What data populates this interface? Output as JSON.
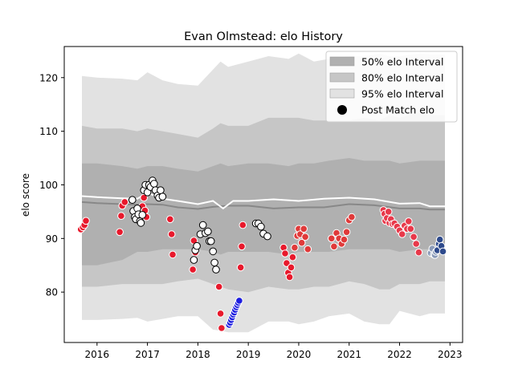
{
  "chart_data": {
    "type": "scatter",
    "title": "Evan Olmstead: elo History",
    "xlabel": "",
    "ylabel": "elo score",
    "xlim": [
      2015.35,
      2023.25
    ],
    "ylim": [
      70.6,
      125.8
    ],
    "x_ticks": [
      2016,
      2017,
      2018,
      2019,
      2020,
      2021,
      2022,
      2023
    ],
    "y_ticks": [
      80,
      90,
      100,
      110,
      120
    ],
    "legend_position": "top-right",
    "legend": [
      {
        "label": "50% elo Interval",
        "kind": "patch",
        "color": "#b0b0b0"
      },
      {
        "label": "80% elo Interval",
        "kind": "patch",
        "color": "#c6c6c6"
      },
      {
        "label": "95% elo Interval",
        "kind": "patch",
        "color": "#e2e2e2"
      },
      {
        "label": "Post Match elo",
        "kind": "marker",
        "color": "#000000"
      }
    ],
    "band_x": [
      2015.7,
      2016.0,
      2016.5,
      2016.8,
      2017.0,
      2017.3,
      2017.6,
      2018.0,
      2018.3,
      2018.45,
      2018.6,
      2019.0,
      2019.4,
      2019.8,
      2020.0,
      2020.3,
      2020.6,
      2021.0,
      2021.3,
      2021.6,
      2021.8,
      2022.0,
      2022.4,
      2022.6,
      2022.75,
      2022.9
    ],
    "interval_95": {
      "upper": [
        120.3,
        120.0,
        119.8,
        119.5,
        121.0,
        119.5,
        118.8,
        118.5,
        121.5,
        123.0,
        122.0,
        123.0,
        124.0,
        123.5,
        124.5,
        123.0,
        123.5,
        124.0,
        124.0,
        124.5,
        124.0,
        124.0,
        124.5,
        124.3,
        124.3,
        124.3
      ],
      "lower": [
        74.8,
        74.8,
        75.0,
        75.2,
        74.5,
        75.0,
        75.5,
        75.5,
        73.0,
        72.8,
        72.5,
        72.5,
        74.5,
        74.5,
        74.0,
        74.5,
        75.5,
        76.0,
        74.5,
        74.0,
        74.0,
        76.5,
        75.5,
        76.0,
        76.0,
        76.0
      ]
    },
    "interval_80": {
      "upper": [
        111.0,
        110.5,
        110.5,
        110.0,
        110.5,
        110.0,
        109.5,
        108.8,
        110.5,
        111.5,
        111.0,
        111.0,
        112.5,
        112.5,
        112.5,
        112.0,
        112.0,
        112.0,
        112.5,
        112.0,
        113.0,
        112.5,
        113.5,
        113.0,
        113.0,
        113.0
      ],
      "lower": [
        81.0,
        81.0,
        81.5,
        81.5,
        81.5,
        81.5,
        82.0,
        82.5,
        81.5,
        81.0,
        80.5,
        80.0,
        81.0,
        80.5,
        80.5,
        81.0,
        81.0,
        82.0,
        81.5,
        80.5,
        80.5,
        81.5,
        81.5,
        82.0,
        82.0,
        82.0
      ]
    },
    "interval_50": {
      "upper": [
        104.0,
        104.0,
        103.5,
        103.0,
        103.5,
        103.5,
        103.0,
        102.5,
        103.5,
        104.0,
        103.5,
        104.0,
        104.0,
        103.5,
        104.0,
        104.0,
        104.5,
        105.0,
        104.5,
        104.5,
        104.5,
        104.0,
        104.5,
        104.5,
        104.5,
        104.5
      ],
      "lower": [
        85.0,
        85.0,
        86.0,
        87.5,
        87.5,
        88.0,
        88.0,
        88.0,
        87.5,
        87.0,
        87.5,
        87.5,
        87.5,
        87.0,
        87.5,
        87.5,
        87.5,
        88.0,
        88.0,
        88.0,
        88.0,
        87.5,
        88.0,
        88.0,
        88.0,
        88.0
      ]
    },
    "median_line": {
      "color": "#888888",
      "x": [
        2015.7,
        2016.0,
        2016.5,
        2016.8,
        2017.0,
        2017.3,
        2017.6,
        2018.0,
        2018.3,
        2018.6,
        2019.0,
        2019.5,
        2020.0,
        2020.5,
        2021.0,
        2021.5,
        2022.0,
        2022.4,
        2022.6,
        2022.9
      ],
      "y": [
        96.8,
        96.6,
        96.4,
        96.3,
        96.4,
        96.3,
        95.8,
        95.5,
        95.9,
        96.1,
        96.1,
        95.6,
        95.8,
        95.8,
        96.4,
        96.2,
        95.6,
        95.6,
        95.4,
        95.4
      ]
    },
    "mean_line": {
      "color": "#ffffff",
      "x": [
        2015.7,
        2016.0,
        2016.5,
        2016.8,
        2017.0,
        2017.3,
        2017.6,
        2018.0,
        2018.3,
        2018.5,
        2018.7,
        2019.0,
        2019.5,
        2020.0,
        2020.5,
        2021.0,
        2021.5,
        2022.0,
        2022.4,
        2022.6,
        2022.9
      ],
      "y": [
        97.9,
        97.7,
        97.5,
        97.4,
        98.5,
        97.4,
        97.0,
        96.4,
        97.0,
        95.6,
        97.0,
        97.0,
        97.3,
        97.0,
        97.4,
        97.6,
        97.3,
        96.5,
        96.6,
        96.0,
        96.0
      ]
    },
    "series": [
      {
        "color": "#e8192c",
        "x": [
          2015.68,
          2015.72,
          2015.75,
          2015.78,
          2016.45,
          2016.48,
          2016.5,
          2016.55,
          2016.9,
          2016.93,
          2016.95,
          2016.98,
          2017.45,
          2017.48,
          2017.5,
          2017.9,
          2017.92,
          2017.95,
          2018.42,
          2018.45,
          2018.47,
          2018.85,
          2018.87,
          2018.89,
          2019.7,
          2019.73,
          2019.76,
          2019.79,
          2019.82,
          2019.85,
          2019.88
        ],
        "y": [
          91.7,
          92.1,
          92.5,
          93.3,
          91.2,
          94.2,
          96.1,
          96.8,
          96.0,
          97.6,
          95.2,
          94.0,
          93.6,
          90.8,
          87.0,
          84.2,
          89.6,
          87.4,
          81.0,
          76.0,
          73.3,
          84.6,
          88.5,
          92.5,
          88.3,
          87.2,
          85.4,
          83.6,
          82.8,
          84.6,
          86.5
        ]
      },
      {
        "color": "#ffffff",
        "x": [
          2016.7,
          2016.72,
          2016.75,
          2016.77,
          2016.8,
          2016.82,
          2016.85,
          2016.87,
          2016.9,
          2016.93,
          2016.96,
          2017.0,
          2017.03,
          2017.06,
          2017.1,
          2017.13,
          2017.16,
          2017.2,
          2017.23,
          2017.26,
          2017.3,
          2017.92,
          2017.95,
          2017.98,
          2018.05,
          2018.1,
          2018.15,
          2018.2,
          2018.23,
          2018.26,
          2018.3,
          2018.33,
          2018.36,
          2019.15,
          2019.2,
          2019.25,
          2019.3,
          2019.38
        ],
        "y": [
          97.2,
          95.1,
          94.0,
          93.6,
          95.6,
          94.5,
          93.2,
          92.9,
          94.4,
          99.0,
          100.0,
          98.6,
          100.0,
          99.6,
          100.8,
          100.2,
          99.0,
          98.0,
          97.6,
          99.0,
          97.8,
          86.0,
          87.8,
          88.6,
          90.8,
          92.5,
          91.0,
          91.3,
          89.5,
          89.5,
          87.6,
          85.5,
          84.2,
          92.8,
          92.8,
          92.2,
          90.9,
          90.4
        ]
      },
      {
        "color": "#1c1ce0",
        "x": [
          2018.62,
          2018.64,
          2018.66,
          2018.68,
          2018.7,
          2018.72,
          2018.74,
          2018.76,
          2018.78,
          2018.8,
          2018.82
        ],
        "y": [
          73.9,
          74.3,
          74.8,
          75.3,
          75.8,
          76.2,
          76.7,
          77.2,
          77.6,
          78.0,
          78.4
        ]
      },
      {
        "color": "#e03a3a",
        "x": [
          2019.92,
          2019.97,
          2020.0,
          2020.03,
          2020.06,
          2020.1,
          2020.13,
          2020.18,
          2020.65,
          2020.7,
          2020.75,
          2020.8,
          2020.85,
          2020.9,
          2020.95,
          2021.0,
          2021.05
        ],
        "y": [
          88.3,
          90.5,
          91.8,
          90.8,
          89.2,
          91.8,
          90.3,
          88.0,
          90.0,
          88.5,
          91.0,
          90.0,
          89.0,
          89.8,
          91.2,
          93.4,
          94.0
        ]
      },
      {
        "color": "#e8394a",
        "x": [
          2021.68,
          2021.7,
          2021.72,
          2021.75,
          2021.78,
          2021.8,
          2021.83,
          2021.86,
          2021.9,
          2021.95,
          2022.0,
          2022.05,
          2022.1,
          2022.15,
          2022.18,
          2022.22,
          2022.28,
          2022.33,
          2022.38
        ],
        "y": [
          95.3,
          94.6,
          93.3,
          93.8,
          95.0,
          92.9,
          93.6,
          92.7,
          92.8,
          92.2,
          91.5,
          90.8,
          92.4,
          91.8,
          93.2,
          91.8,
          90.3,
          89.0,
          87.4
        ]
      },
      {
        "color": "#8b9bb8",
        "x": [
          2022.62,
          2022.65,
          2022.68,
          2022.7,
          2022.72
        ],
        "y": [
          87.3,
          88.1,
          87.0,
          86.9,
          87.5
        ]
      },
      {
        "color": "#2e4a8c",
        "x": [
          2022.75,
          2022.78,
          2022.8,
          2022.83,
          2022.86
        ],
        "y": [
          87.8,
          89.0,
          89.8,
          88.6,
          87.6
        ]
      }
    ]
  }
}
